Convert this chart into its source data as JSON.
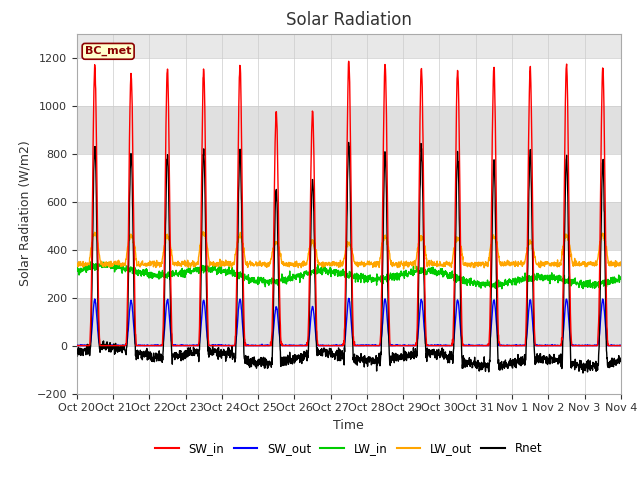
{
  "title": "Solar Radiation",
  "ylabel": "Solar Radiation (W/m2)",
  "xlabel": "Time",
  "station_label": "BC_met",
  "ylim": [
    -200,
    1300
  ],
  "yticks": [
    -200,
    0,
    200,
    400,
    600,
    800,
    1000,
    1200
  ],
  "series": {
    "SW_in": {
      "color": "#ff0000",
      "lw": 1.0
    },
    "SW_out": {
      "color": "#0000ff",
      "lw": 1.0
    },
    "LW_in": {
      "color": "#00cc00",
      "lw": 1.0
    },
    "LW_out": {
      "color": "#ffa500",
      "lw": 1.0
    },
    "Rnet": {
      "color": "#000000",
      "lw": 1.0
    }
  },
  "n_days": 15,
  "pts_per_day": 144,
  "tick_labels": [
    "Oct 20",
    "Oct 21",
    "Oct 22",
    "Oct 23",
    "Oct 24",
    "Oct 25",
    "Oct 26",
    "Oct 27",
    "Oct 28",
    "Oct 29",
    "Oct 30",
    "Oct 31",
    "Nov 1",
    "Nov 2",
    "Nov 3",
    "Nov 4"
  ],
  "fig_bg": "#ffffff",
  "axes_bg": "#e8e8e8"
}
